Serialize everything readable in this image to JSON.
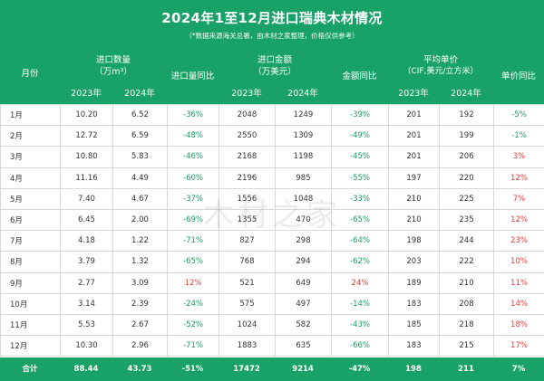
{
  "header": {
    "title": "2024年1至12月进口瑞典木材情况",
    "subtitle": "（*数据来源海关总署，由木材之家整理，价格仅供参考）",
    "month_label": "月份",
    "volume_label_1": "进口数量",
    "volume_label_2": "（万m³）",
    "volume_yoy_label": "进口量同比",
    "amount_label_1": "进口金额",
    "amount_label_2": "（万美元）",
    "amount_yoy_label": "金额同比",
    "price_label_1": "平均单价",
    "price_label_2": "（CIF,美元/立方米）",
    "price_yoy_label": "单价同比",
    "year_2023": "2023年",
    "year_2024": "2024年"
  },
  "watermark": "木材之家",
  "rows": [
    {
      "month": "1月",
      "v2023": "10.20",
      "v2024": "6.52",
      "vyoy": "-36%",
      "a2023": "2048",
      "a2024": "1249",
      "ayoy": "-39%",
      "p2023": "201",
      "p2024": "192",
      "pyoy": "-5%"
    },
    {
      "month": "2月",
      "v2023": "12.72",
      "v2024": "6.59",
      "vyoy": "-48%",
      "a2023": "2550",
      "a2024": "1309",
      "ayoy": "-49%",
      "p2023": "201",
      "p2024": "199",
      "pyoy": "-1%"
    },
    {
      "month": "3月",
      "v2023": "10.80",
      "v2024": "5.83",
      "vyoy": "-46%",
      "a2023": "2168",
      "a2024": "1198",
      "ayoy": "-45%",
      "p2023": "201",
      "p2024": "206",
      "pyoy": "3%"
    },
    {
      "month": "4月",
      "v2023": "11.16",
      "v2024": "4.49",
      "vyoy": "-60%",
      "a2023": "2196",
      "a2024": "985",
      "ayoy": "-55%",
      "p2023": "197",
      "p2024": "220",
      "pyoy": "12%"
    },
    {
      "month": "5月",
      "v2023": "7.40",
      "v2024": "4.67",
      "vyoy": "-37%",
      "a2023": "1556",
      "a2024": "1048",
      "ayoy": "-33%",
      "p2023": "210",
      "p2024": "225",
      "pyoy": "7%"
    },
    {
      "month": "6月",
      "v2023": "6.45",
      "v2024": "2.00",
      "vyoy": "-69%",
      "a2023": "1355",
      "a2024": "470",
      "ayoy": "-65%",
      "p2023": "210",
      "p2024": "235",
      "pyoy": "12%"
    },
    {
      "month": "7月",
      "v2023": "4.18",
      "v2024": "1.22",
      "vyoy": "-71%",
      "a2023": "827",
      "a2024": "298",
      "ayoy": "-64%",
      "p2023": "198",
      "p2024": "244",
      "pyoy": "23%"
    },
    {
      "month": "8月",
      "v2023": "3.79",
      "v2024": "1.32",
      "vyoy": "-65%",
      "a2023": "768",
      "a2024": "294",
      "ayoy": "-62%",
      "p2023": "203",
      "p2024": "222",
      "pyoy": "10%"
    },
    {
      "month": "9月",
      "v2023": "2.77",
      "v2024": "3.09",
      "vyoy": "12%",
      "a2023": "521",
      "a2024": "649",
      "ayoy": "24%",
      "p2023": "189",
      "p2024": "210",
      "pyoy": "11%"
    },
    {
      "month": "10月",
      "v2023": "3.14",
      "v2024": "2.39",
      "vyoy": "-24%",
      "a2023": "575",
      "a2024": "497",
      "ayoy": "-14%",
      "p2023": "183",
      "p2024": "208",
      "pyoy": "14%"
    },
    {
      "month": "11月",
      "v2023": "5.53",
      "v2024": "2.67",
      "vyoy": "-52%",
      "a2023": "1024",
      "a2024": "582",
      "ayoy": "-43%",
      "p2023": "185",
      "p2024": "218",
      "pyoy": "18%"
    },
    {
      "month": "12月",
      "v2023": "10.30",
      "v2024": "2.96",
      "vyoy": "-71%",
      "a2023": "1883",
      "a2024": "635",
      "ayoy": "-66%",
      "p2023": "183",
      "p2024": "215",
      "pyoy": "17%"
    }
  ],
  "total": {
    "month": "合计",
    "v2023": "88.44",
    "v2024": "43.73",
    "vyoy": "-51%",
    "a2023": "17472",
    "a2024": "9214",
    "ayoy": "-47%",
    "p2023": "198",
    "p2024": "211",
    "pyoy": "7%"
  },
  "colors": {
    "header_bg": "#19a267",
    "negative": "#1e9a5f",
    "positive": "#e23b3b"
  }
}
